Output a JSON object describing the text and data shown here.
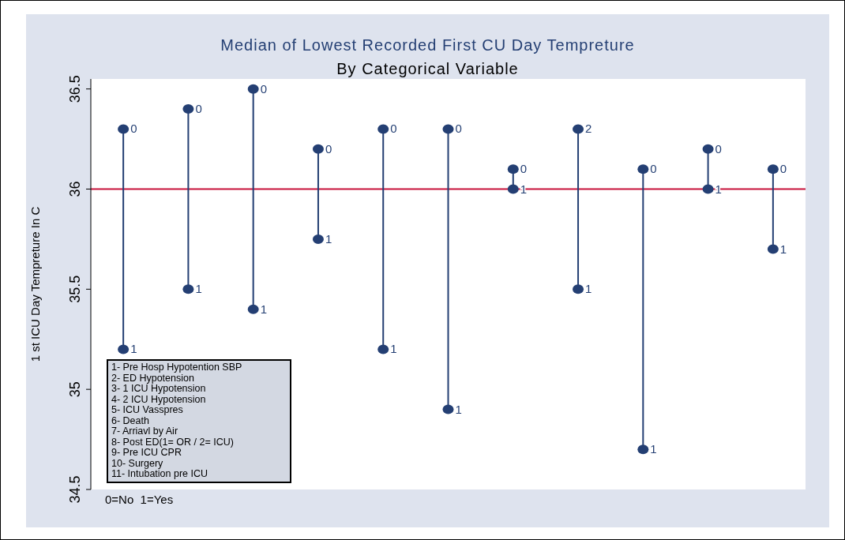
{
  "chart_data": {
    "type": "scatter",
    "title": "Median of Lowest Recorded First CU Day Tempreture",
    "subtitle": "By Categorical Variable",
    "ylabel": "1 st ICU Day Tempreture In C",
    "categories": [
      null,
      null,
      null,
      null,
      null,
      null,
      null,
      null,
      null,
      null,
      null
    ],
    "series": [
      {
        "name": "0",
        "color": "#243f73",
        "values": [
          36.3,
          36.4,
          36.5,
          36.2,
          36.3,
          36.3,
          36.1,
          null,
          36.1,
          36.2,
          36.1
        ]
      },
      {
        "name": "2",
        "color": "#243f73",
        "values": [
          null,
          null,
          null,
          null,
          null,
          null,
          null,
          36.3,
          null,
          null,
          null
        ]
      },
      {
        "name": "1",
        "color": "#243f73",
        "values": [
          35.2,
          35.5,
          35.4,
          35.75,
          35.2,
          34.9,
          36.0,
          35.5,
          34.7,
          36.0,
          35.7
        ]
      }
    ],
    "ylim": [
      34.5,
      36.55
    ],
    "yticks": [
      34.5,
      35,
      35.5,
      36,
      36.5
    ],
    "tick_labels": "y",
    "marker": "circle",
    "ref_lines": [
      {
        "axis": "y",
        "value": 36,
        "color": "#c8143c"
      }
    ],
    "annotations": [
      "1- Pre Hosp Hypotention SBP",
      "2- ED Hypotension",
      "3- 1 ICU Hypotension",
      "4- 2 ICU Hypotension",
      "5- ICU Vasspres",
      "6- Death",
      "7- Arriavl by Air",
      "8- Post ED(1= OR / 2= ICU)",
      "9- Pre ICU CPR",
      "10- Surgery",
      "11- Intubation pre ICU",
      "0=No  1=Yes"
    ]
  }
}
